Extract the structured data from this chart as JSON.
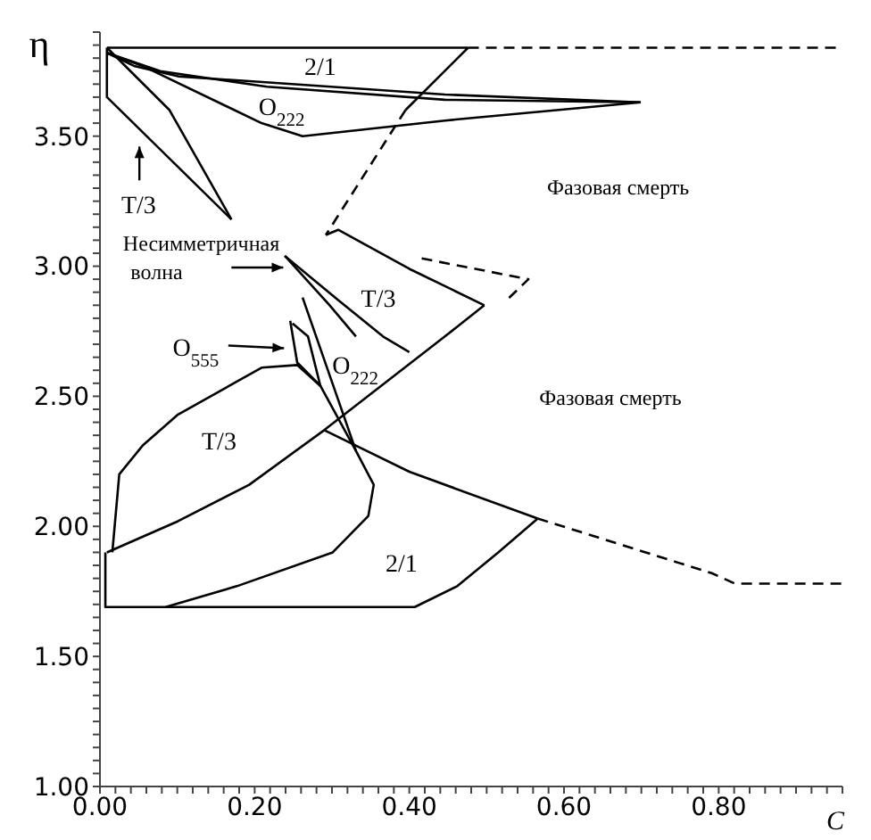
{
  "chart_data": {
    "type": "line",
    "xlabel": "C",
    "ylabel": "η",
    "xlim": [
      0,
      0.96
    ],
    "ylim": [
      1,
      3.9
    ],
    "xticks": [
      {
        "value": 0,
        "label": "0.00"
      },
      {
        "value": 0.02,
        "label": null
      },
      {
        "value": 0.04,
        "label": null
      },
      {
        "value": 0.06,
        "label": null
      },
      {
        "value": 0.08,
        "label": null
      },
      {
        "value": 0.1,
        "label": null
      },
      {
        "value": 0.12,
        "label": null
      },
      {
        "value": 0.14,
        "label": null
      },
      {
        "value": 0.16,
        "label": null
      },
      {
        "value": 0.18,
        "label": null
      },
      {
        "value": 0.2,
        "label": "0.20"
      },
      {
        "value": 0.22,
        "label": null
      },
      {
        "value": 0.24,
        "label": null
      },
      {
        "value": 0.26,
        "label": null
      },
      {
        "value": 0.28,
        "label": null
      },
      {
        "value": 0.3,
        "label": null
      },
      {
        "value": 0.32,
        "label": null
      },
      {
        "value": 0.34,
        "label": null
      },
      {
        "value": 0.36,
        "label": null
      },
      {
        "value": 0.38,
        "label": null
      },
      {
        "value": 0.4,
        "label": "0.40"
      },
      {
        "value": 0.42,
        "label": null
      },
      {
        "value": 0.44,
        "label": null
      },
      {
        "value": 0.46,
        "label": null
      },
      {
        "value": 0.48,
        "label": null
      },
      {
        "value": 0.5,
        "label": null
      },
      {
        "value": 0.52,
        "label": null
      },
      {
        "value": 0.54,
        "label": null
      },
      {
        "value": 0.56,
        "label": null
      },
      {
        "value": 0.58,
        "label": null
      },
      {
        "value": 0.6,
        "label": "0.60"
      },
      {
        "value": 0.62,
        "label": null
      },
      {
        "value": 0.64,
        "label": null
      },
      {
        "value": 0.66,
        "label": null
      },
      {
        "value": 0.68,
        "label": null
      },
      {
        "value": 0.7,
        "label": null
      },
      {
        "value": 0.72,
        "label": null
      },
      {
        "value": 0.74,
        "label": null
      },
      {
        "value": 0.76,
        "label": null
      },
      {
        "value": 0.78,
        "label": null
      },
      {
        "value": 0.8,
        "label": "0.80"
      },
      {
        "value": 0.82,
        "label": null
      },
      {
        "value": 0.84,
        "label": null
      },
      {
        "value": 0.86,
        "label": null
      },
      {
        "value": 0.88,
        "label": null
      },
      {
        "value": 0.9,
        "label": null
      },
      {
        "value": 0.92,
        "label": null
      },
      {
        "value": 0.94,
        "label": null
      },
      {
        "value": 0.96,
        "label": null
      }
    ],
    "yticks": [
      {
        "value": 1,
        "label": "1.00"
      },
      {
        "value": 1.05,
        "label": null
      },
      {
        "value": 1.1,
        "label": null
      },
      {
        "value": 1.15,
        "label": null
      },
      {
        "value": 1.2,
        "label": null
      },
      {
        "value": 1.25,
        "label": null
      },
      {
        "value": 1.3,
        "label": null
      },
      {
        "value": 1.35,
        "label": null
      },
      {
        "value": 1.4,
        "label": null
      },
      {
        "value": 1.45,
        "label": null
      },
      {
        "value": 1.5,
        "label": "1.50"
      },
      {
        "value": 1.55,
        "label": null
      },
      {
        "value": 1.6,
        "label": null
      },
      {
        "value": 1.65,
        "label": null
      },
      {
        "value": 1.7,
        "label": null
      },
      {
        "value": 1.75,
        "label": null
      },
      {
        "value": 1.8,
        "label": null
      },
      {
        "value": 1.85,
        "label": null
      },
      {
        "value": 1.9,
        "label": null
      },
      {
        "value": 1.95,
        "label": null
      },
      {
        "value": 2,
        "label": "2.00"
      },
      {
        "value": 2.05,
        "label": null
      },
      {
        "value": 2.1,
        "label": null
      },
      {
        "value": 2.15,
        "label": null
      },
      {
        "value": 2.2,
        "label": null
      },
      {
        "value": 2.25,
        "label": null
      },
      {
        "value": 2.3,
        "label": null
      },
      {
        "value": 2.35,
        "label": null
      },
      {
        "value": 2.4,
        "label": null
      },
      {
        "value": 2.45,
        "label": null
      },
      {
        "value": 2.5,
        "label": "2.50"
      },
      {
        "value": 2.55,
        "label": null
      },
      {
        "value": 2.6,
        "label": null
      },
      {
        "value": 2.65,
        "label": null
      },
      {
        "value": 2.7,
        "label": null
      },
      {
        "value": 2.75,
        "label": null
      },
      {
        "value": 2.8,
        "label": null
      },
      {
        "value": 2.85,
        "label": null
      },
      {
        "value": 2.9,
        "label": null
      },
      {
        "value": 2.95,
        "label": null
      },
      {
        "value": 3,
        "label": "3.00"
      },
      {
        "value": 3.05,
        "label": null
      },
      {
        "value": 3.1,
        "label": null
      },
      {
        "value": 3.15,
        "label": null
      },
      {
        "value": 3.2,
        "label": null
      },
      {
        "value": 3.25,
        "label": null
      },
      {
        "value": 3.3,
        "label": null
      },
      {
        "value": 3.35,
        "label": null
      },
      {
        "value": 3.4,
        "label": null
      },
      {
        "value": 3.45,
        "label": null
      },
      {
        "value": 3.5,
        "label": "3.50"
      },
      {
        "value": 3.55,
        "label": null
      },
      {
        "value": 3.6,
        "label": null
      },
      {
        "value": 3.65,
        "label": null
      },
      {
        "value": 3.7,
        "label": null
      },
      {
        "value": 3.75,
        "label": null
      },
      {
        "value": 3.8,
        "label": null
      },
      {
        "value": 3.85,
        "label": null
      },
      {
        "value": 3.9,
        "label": null
      }
    ],
    "series": [
      {
        "color": "#000000",
        "x": [
          0.009,
          0.476
        ],
        "values": [
          3.84,
          3.84
        ]
      },
      {
        "color": "#000000",
        "line_style": "dashed",
        "x": [
          0.476,
          0.96
        ],
        "values": [
          3.84,
          3.84
        ]
      },
      {
        "color": "#000000",
        "x": [
          0.009,
          0.009,
          0.17
        ],
        "values": [
          3.84,
          3.65,
          3.18
        ]
      },
      {
        "color": "#000000",
        "x": [
          0.009,
          0.09,
          0.17
        ],
        "values": [
          3.84,
          3.6,
          3.18
        ]
      },
      {
        "color": "#000000",
        "x": [
          0.009,
          0.044,
          0.101,
          0.446,
          0.699
        ],
        "values": [
          3.82,
          3.77,
          3.73,
          3.66,
          3.63
        ]
      },
      {
        "color": "#000000",
        "x": [
          0.009,
          0.078,
          0.216,
          0.446,
          0.699
        ],
        "values": [
          3.82,
          3.75,
          3.69,
          3.64,
          3.63
        ]
      },
      {
        "color": "#000000",
        "x": [
          0.009,
          0.055,
          0.209,
          0.262,
          0.446,
          0.699
        ],
        "values": [
          3.82,
          3.77,
          3.55,
          3.5,
          3.56,
          3.63
        ]
      },
      {
        "color": "#000000",
        "x": [
          0.476,
          0.395
        ],
        "values": [
          3.84,
          3.6
        ]
      },
      {
        "color": "#000000",
        "line_style": "dashed",
        "x": [
          0.395,
          0.292
        ],
        "values": [
          3.6,
          3.12
        ]
      },
      {
        "color": "#000000",
        "x": [
          0.292,
          0.308,
          0.4,
          0.497
        ],
        "values": [
          3.12,
          3.14,
          2.99,
          2.85
        ]
      },
      {
        "color": "#000000",
        "x": [
          0.009,
          0.101,
          0.193,
          0.29,
          0.446,
          0.497
        ],
        "values": [
          1.9,
          2.02,
          2.16,
          2.37,
          2.73,
          2.85
        ]
      },
      {
        "color": "#000000",
        "x": [
          0.29,
          0.4,
          0.566
        ],
        "values": [
          2.37,
          2.21,
          2.03
        ]
      },
      {
        "color": "#000000",
        "line_style": "dashed",
        "x": [
          0.566,
          0.791,
          0.821,
          0.96
        ],
        "values": [
          2.03,
          1.82,
          1.78,
          1.78
        ]
      },
      {
        "color": "#000000",
        "x": [
          0.007,
          0.007,
          0.407,
          0.462,
          0.515,
          0.566
        ],
        "values": [
          1.9,
          1.69,
          1.69,
          1.77,
          1.9,
          2.03
        ]
      },
      {
        "color": "#000000",
        "x": [
          0.016,
          0.025,
          0.055,
          0.101,
          0.209,
          0.255,
          0.285,
          0.331,
          0.354,
          0.347,
          0.301,
          0.177,
          0.085
        ],
        "values": [
          1.9,
          2.2,
          2.31,
          2.43,
          2.61,
          2.62,
          2.54,
          2.29,
          2.16,
          2.04,
          1.9,
          1.77,
          1.69
        ]
      },
      {
        "color": "#000000",
        "x": [
          0.262,
          0.331
        ],
        "values": [
          2.88,
          2.29
        ]
      },
      {
        "color": "#000000",
        "x": [
          0.246,
          0.255,
          0.285,
          0.269,
          0.249
        ],
        "values": [
          2.79,
          2.63,
          2.54,
          2.73,
          2.78
        ]
      },
      {
        "color": "#000000",
        "x": [
          0.239,
          0.308,
          0.366,
          0.4
        ],
        "values": [
          3.04,
          2.87,
          2.73,
          2.67
        ]
      },
      {
        "color": "#000000",
        "x": [
          0.239,
          0.297,
          0.331
        ],
        "values": [
          3.04,
          2.85,
          2.73
        ]
      },
      {
        "color": "#000000",
        "line_style": "dashed",
        "x": [
          0.416,
          0.554,
          0.526
        ],
        "values": [
          3.03,
          2.95,
          2.87
        ]
      }
    ],
    "annotations": [
      "2/1",
      "O$_{222}$",
      "T/3",
      "Фазовая смерть",
      "Несимметричная волна",
      "T/3",
      "O$_{555}$",
      "O$_{222}$",
      "Фазовая смерть",
      "T/3",
      "2/1"
    ]
  }
}
